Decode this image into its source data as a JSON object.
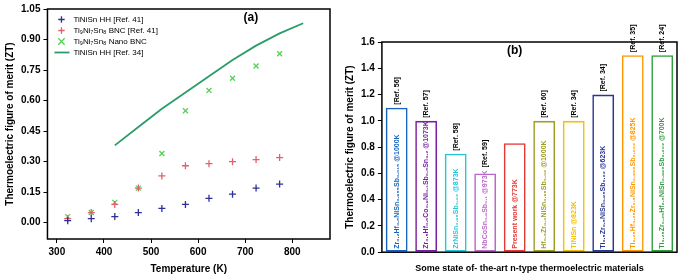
{
  "chart_data": [
    {
      "type": "scatter",
      "title": "(a)",
      "xlabel": "Temperature (K)",
      "ylabel": "Thermoelectric figure of merit (ZT)",
      "xlim": [
        280,
        880
      ],
      "xticks": [
        300,
        400,
        500,
        600,
        700,
        800
      ],
      "ylim": [
        -0.08,
        1.05
      ],
      "yticks": [
        {
          "value": 0,
          "label": "0.00"
        },
        0.15,
        {
          "value": 0.3,
          "label": "0.30"
        },
        0.45,
        {
          "value": 0.6,
          "label": "0.60"
        },
        0.75,
        {
          "value": 0.9,
          "label": "0.90"
        },
        1.05
      ],
      "legend": "upper left",
      "grid": false,
      "series": [
        {
          "name": "TiNiSn HH [Ref. 41]",
          "type": "scatter",
          "color": "#2e2e9e",
          "marker": "cross",
          "x": [
            323,
            373,
            423,
            473,
            523,
            573,
            623,
            673,
            723,
            773
          ],
          "values": [
            0.01,
            0.02,
            0.03,
            0.05,
            0.07,
            0.09,
            0.12,
            0.14,
            0.17,
            0.19
          ]
        },
        {
          "name": "Ti₉Ni₇Sn₈ BNC [Ref. 41]",
          "type": "scatter",
          "color": "#e0606e",
          "marker": "cross",
          "x": [
            323,
            373,
            423,
            473,
            523,
            573,
            623,
            673,
            723,
            773
          ],
          "values": [
            0.02,
            0.05,
            0.09,
            0.17,
            0.23,
            0.28,
            0.29,
            0.3,
            0.31,
            0.32
          ]
        },
        {
          "name": "Ti₉Ni₇Sn₈ Nano BNC",
          "type": "scatter",
          "color": "#55d055",
          "marker": "crossRot",
          "x": [
            323,
            373,
            423,
            473,
            523,
            573,
            623,
            673,
            723,
            773
          ],
          "values": [
            0.03,
            0.05,
            0.1,
            0.17,
            0.34,
            0.55,
            0.65,
            0.71,
            0.77,
            0.83
          ]
        },
        {
          "name": "TiNiSn HH [Ref. 34]",
          "type": "line",
          "color": "#2a9d6a",
          "line_style": "solid",
          "x": [
            423,
            473,
            523,
            573,
            623,
            673,
            723,
            773,
            823
          ],
          "values": [
            0.38,
            0.47,
            0.56,
            0.64,
            0.72,
            0.8,
            0.87,
            0.93,
            0.98
          ]
        }
      ]
    },
    {
      "type": "bar",
      "title": "(b)",
      "xlabel": "Some state of- the-art n-type thermoelectric materials",
      "ylabel": "Thermoelectric figure of merit (ZT)",
      "categories": [
        "Zr₀.₂Hf₀.₈NiSn₀.₉₈₅Sb₀.₀₁₅ @1000K",
        "Zr₀.₅Hf₀.₅Co₀.₉Ni₀.₁Sb₀.₈Sn₀.₂ @1073K",
        "ZrNiSn₀.₉₈Sb₀.₀₂ @873K",
        "NbCoSn₀.₉Sb₀.₁ @973K",
        "Present work @773K",
        "Hf₀.₆Zr₀.₄NiSn₀.₉₈Sb₀.₀₂ @1000K",
        "TiNiSn @823K",
        "Ti₀.₅Zr₀.₅NiSn₀.₉₈Sb₀.₀₂ @623K",
        "Ti₀.₂₅Hf₀.₂₅Zr₀.₅NiSn₀.₉₉₈Sb₀.₀₀₂ @825K",
        "Ti₀.₂₅Zr₀.₂₅Hf₀.₅NiSn₀.₉₉₈Sb₀.₀₀₂ @700K"
      ],
      "values": [
        1.1,
        1.0,
        0.75,
        0.6,
        0.83,
        1.0,
        1.0,
        1.2,
        1.5,
        1.5
      ],
      "colors": [
        "#1565c0",
        "#7b1fa2",
        "#26c6da",
        "#ba68c8",
        "#e53935",
        "#9e9d24",
        "#f2c200",
        "#283593",
        "#ff9800",
        "#2e9e3e"
      ],
      "annotations": [
        "[Ref. 56]",
        "[Ref. 57]",
        "[Ref. 58]",
        "[Ref. 59]",
        null,
        "[Ref. 60]",
        "[Ref. 34]",
        "[Ref. 34]",
        "[Ref. 35]",
        "[Ref. 24]"
      ],
      "ylim": [
        0,
        1.6
      ],
      "yticks": [
        {
          "value": 0,
          "label": "0.0"
        },
        0.2,
        0.4,
        0.6,
        0.8,
        {
          "value": 1,
          "label": "1.0"
        },
        1.2,
        1.4,
        1.6
      ],
      "tick_labels": "y",
      "grid": false
    }
  ]
}
